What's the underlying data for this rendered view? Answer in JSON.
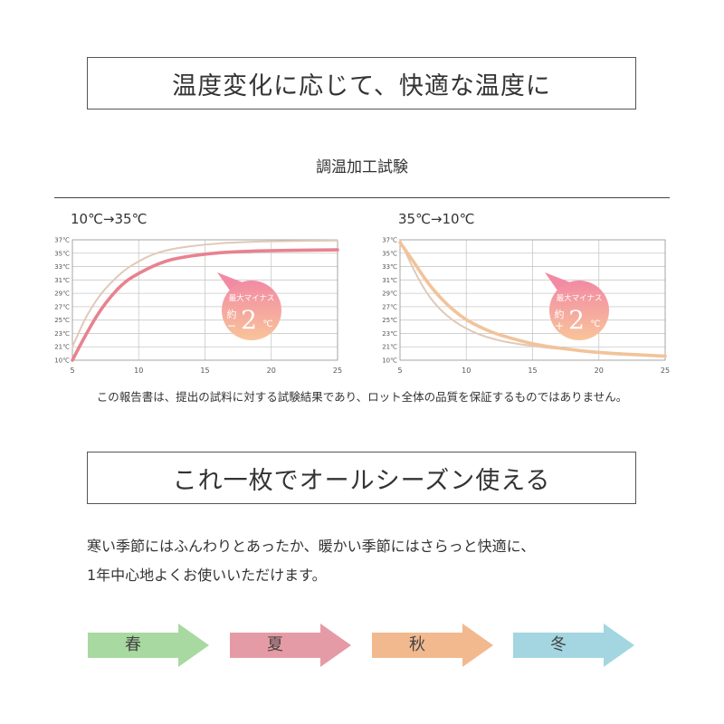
{
  "header": {
    "title": "温度変化に応じて、快適な温度に"
  },
  "subtitle": "調温加工試験",
  "chart_data": [
    {
      "type": "line",
      "title": "10℃→35℃",
      "x_ticks": [
        "5",
        "10",
        "15",
        "20",
        "25"
      ],
      "y_ticks": [
        "10℃",
        "21℃",
        "23℃",
        "25℃",
        "27℃",
        "29℃",
        "31℃",
        "33℃",
        "35℃",
        "37℃"
      ],
      "xlim": [
        5,
        25
      ],
      "ylim": [
        "10℃",
        "37℃"
      ],
      "grid": true,
      "series": [
        {
          "color": "#e0c9b8",
          "x": [
            5,
            5.5,
            6,
            7,
            8,
            9,
            10,
            11,
            12,
            13,
            15,
            17,
            20,
            25
          ],
          "y_index": [
            1.0,
            2.1,
            3.2,
            4.8,
            5.9,
            6.8,
            7.4,
            7.9,
            8.2,
            8.4,
            8.65,
            8.8,
            8.9,
            8.95
          ]
        },
        {
          "color": "#e8828f",
          "x": [
            5,
            6,
            7,
            8,
            9,
            10,
            11,
            12,
            13,
            15,
            17,
            20,
            25
          ],
          "y_index": [
            0.0,
            1.9,
            3.6,
            4.9,
            5.9,
            6.5,
            7.0,
            7.4,
            7.65,
            7.95,
            8.1,
            8.2,
            8.25
          ]
        }
      ],
      "badge": {
        "line1": "最大マイナス",
        "prefix": "約",
        "sign": "−",
        "value": "2",
        "unit": "℃"
      }
    },
    {
      "type": "line",
      "title": "35℃→10℃",
      "x_ticks": [
        "5",
        "10",
        "15",
        "20",
        "25"
      ],
      "y_ticks": [
        "10℃",
        "21℃",
        "23℃",
        "25℃",
        "27℃",
        "29℃",
        "31℃",
        "33℃",
        "35℃",
        "37℃"
      ],
      "xlim": [
        5,
        25
      ],
      "ylim": [
        "10℃",
        "37℃"
      ],
      "grid": true,
      "series": [
        {
          "color": "#e0c9b8",
          "x": [
            5,
            6,
            7,
            8,
            9,
            10,
            11,
            12,
            13,
            15,
            17,
            20,
            25
          ],
          "y_index": [
            9.0,
            6.8,
            5.0,
            3.8,
            2.95,
            2.35,
            1.9,
            1.6,
            1.35,
            1.05,
            0.85,
            0.6,
            0.35
          ]
        },
        {
          "color": "#f2c39a",
          "x": [
            5,
            6,
            7,
            8,
            9,
            10,
            11,
            12,
            13,
            15,
            17,
            20,
            25
          ],
          "y_index": [
            8.8,
            7.4,
            5.9,
            4.7,
            3.75,
            3.0,
            2.5,
            2.05,
            1.75,
            1.2,
            0.9,
            0.55,
            0.3
          ]
        }
      ],
      "badge": {
        "line1": "最大マイナス",
        "prefix": "約",
        "sign": "+",
        "value": "2",
        "unit": "℃"
      }
    }
  ],
  "disclaimer": "この報告書は、提出の試料に対する試験結果であり、ロット全体の品質を保証するものではありません。",
  "section2": {
    "title": "これ一枚でオールシーズン使える",
    "line1": "寒い季節にはふんわりとあったか、暖かい季節にはさらっと快適に、",
    "line2": "1年中心地よくお使いいただけます。"
  },
  "seasons": [
    {
      "label": "春",
      "color": "#a8d9a0"
    },
    {
      "label": "夏",
      "color": "#e59ba6"
    },
    {
      "label": "秋",
      "color": "#f2b98e"
    },
    {
      "label": "冬",
      "color": "#a3d6e0"
    }
  ]
}
